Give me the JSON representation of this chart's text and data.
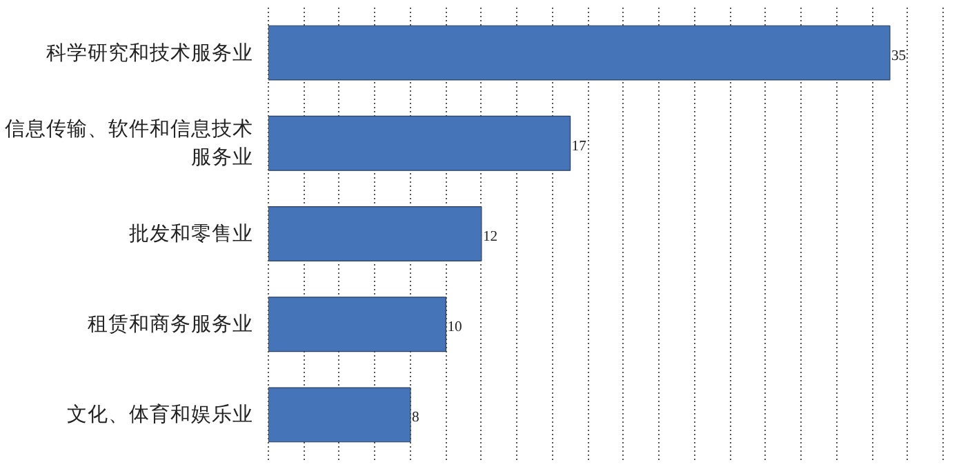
{
  "chart_data": {
    "type": "bar",
    "orientation": "horizontal",
    "categories": [
      "科学研究和技术服务业",
      "信息传输、软件和信息技术服务业",
      "批发和零售业",
      "租赁和商务服务业",
      "文化、体育和娱乐业"
    ],
    "values": [
      35,
      17,
      12,
      10,
      8
    ],
    "color": "#4674b9",
    "data_labels": true,
    "grid": "x",
    "tick_labels": "y"
  }
}
